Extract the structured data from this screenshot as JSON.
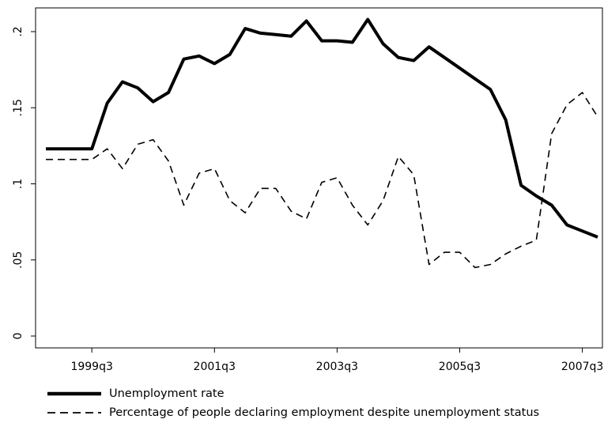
{
  "chart_data": {
    "type": "line",
    "title": "",
    "xlabel": "",
    "ylabel": "",
    "ylim": [
      0,
      0.205
    ],
    "y_ticks": [
      {
        "value": 0,
        "label": "0"
      },
      {
        "value": 0.05,
        "label": ".05"
      },
      {
        "value": 0.1,
        "label": ".1"
      },
      {
        "value": 0.15,
        "label": ".15"
      },
      {
        "value": 0.2,
        "label": ".2"
      }
    ],
    "x_ticks": [
      "1999q3",
      "2001q3",
      "2003q3",
      "2005q3",
      "2007q3"
    ],
    "x": [
      "1998q4",
      "1999q1",
      "1999q2",
      "1999q3",
      "1999q4",
      "2000q1",
      "2000q2",
      "2000q3",
      "2000q4",
      "2001q1",
      "2001q2",
      "2001q3",
      "2001q4",
      "2002q1",
      "2002q2",
      "2002q3",
      "2002q4",
      "2003q1",
      "2003q2",
      "2003q3",
      "2003q4",
      "2004q1",
      "2004q2",
      "2004q3",
      "2004q4",
      "2005q1",
      "2005q2",
      "2005q3",
      "2005q4",
      "2006q1",
      "2006q2",
      "2006q3",
      "2006q4",
      "2007q1",
      "2007q2",
      "2007q3",
      "2007q4"
    ],
    "grid": false,
    "legend_position": "bottom",
    "series": [
      {
        "name": "Unemployment rate",
        "color": "#000000",
        "style": "solid",
        "values": [
          0.123,
          0.123,
          0.123,
          0.123,
          0.153,
          0.167,
          0.163,
          0.154,
          0.16,
          0.182,
          0.184,
          0.179,
          0.185,
          0.202,
          0.199,
          0.198,
          0.197,
          0.207,
          0.194,
          0.194,
          0.193,
          0.208,
          0.192,
          0.183,
          0.181,
          0.19,
          0.183,
          0.176,
          0.169,
          0.162,
          0.142,
          0.099,
          0.092,
          0.086,
          0.073,
          0.069,
          0.065
        ]
      },
      {
        "name": "Percentage of people declaring employment despite unemployment status",
        "color": "#000000",
        "style": "dashed",
        "values": [
          0.116,
          0.116,
          0.116,
          0.116,
          0.123,
          0.11,
          0.126,
          0.129,
          0.115,
          0.086,
          0.107,
          0.11,
          0.089,
          0.081,
          0.097,
          0.097,
          0.082,
          0.077,
          0.101,
          0.104,
          0.086,
          0.073,
          0.089,
          0.118,
          0.106,
          0.047,
          0.055,
          0.055,
          0.045,
          0.047,
          0.054,
          0.059,
          0.063,
          0.133,
          0.152,
          0.16,
          0.144
        ]
      }
    ]
  }
}
